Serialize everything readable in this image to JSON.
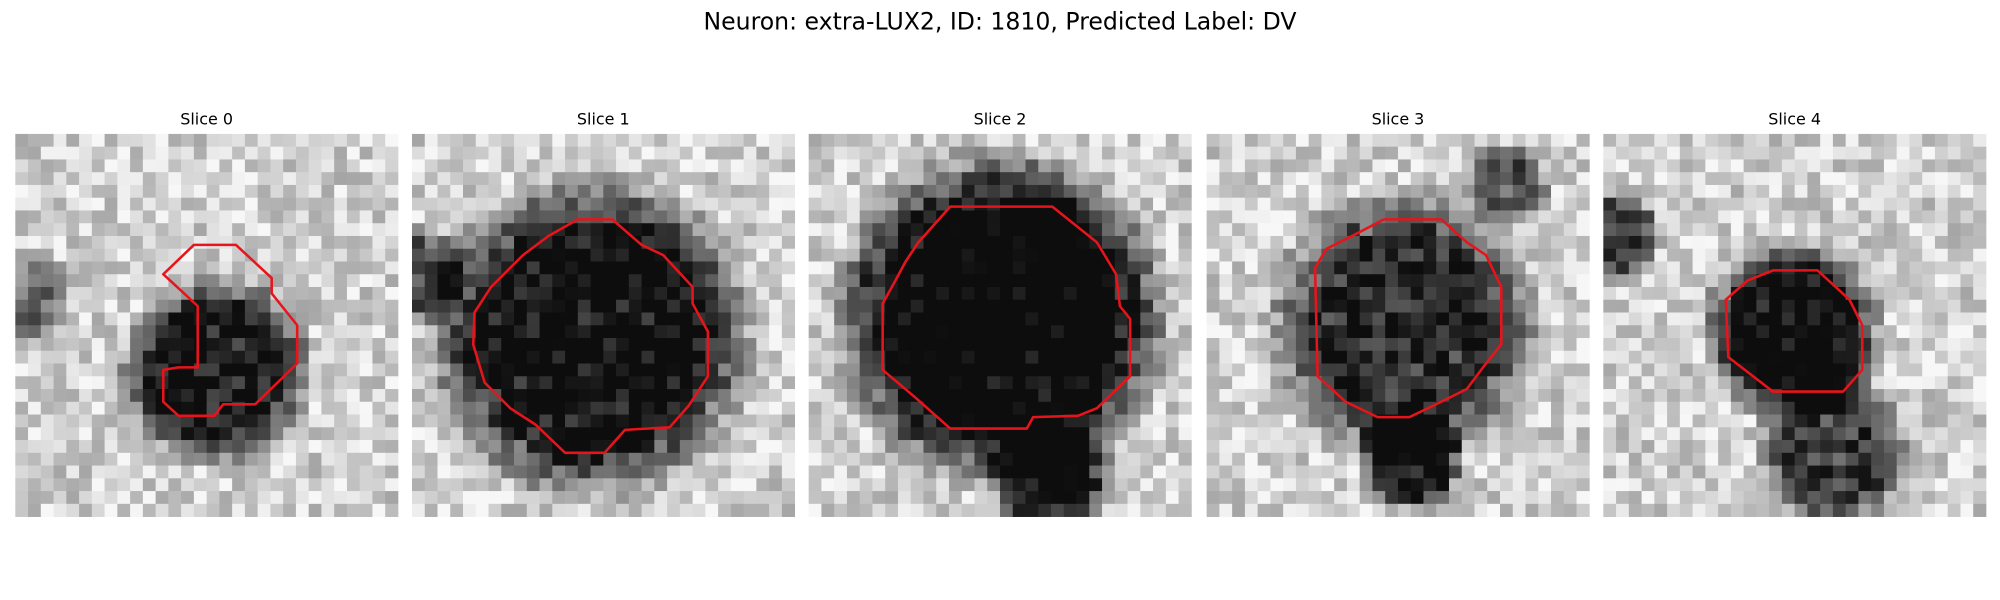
{
  "title": "Neuron: extra-LUX2, ID: 1810, Predicted Label: DV",
  "panels": [
    {
      "title": "Slice 0"
    },
    {
      "title": "Slice 1"
    },
    {
      "title": "Slice 2"
    },
    {
      "title": "Slice 3"
    },
    {
      "title": "Slice 4"
    }
  ]
}
